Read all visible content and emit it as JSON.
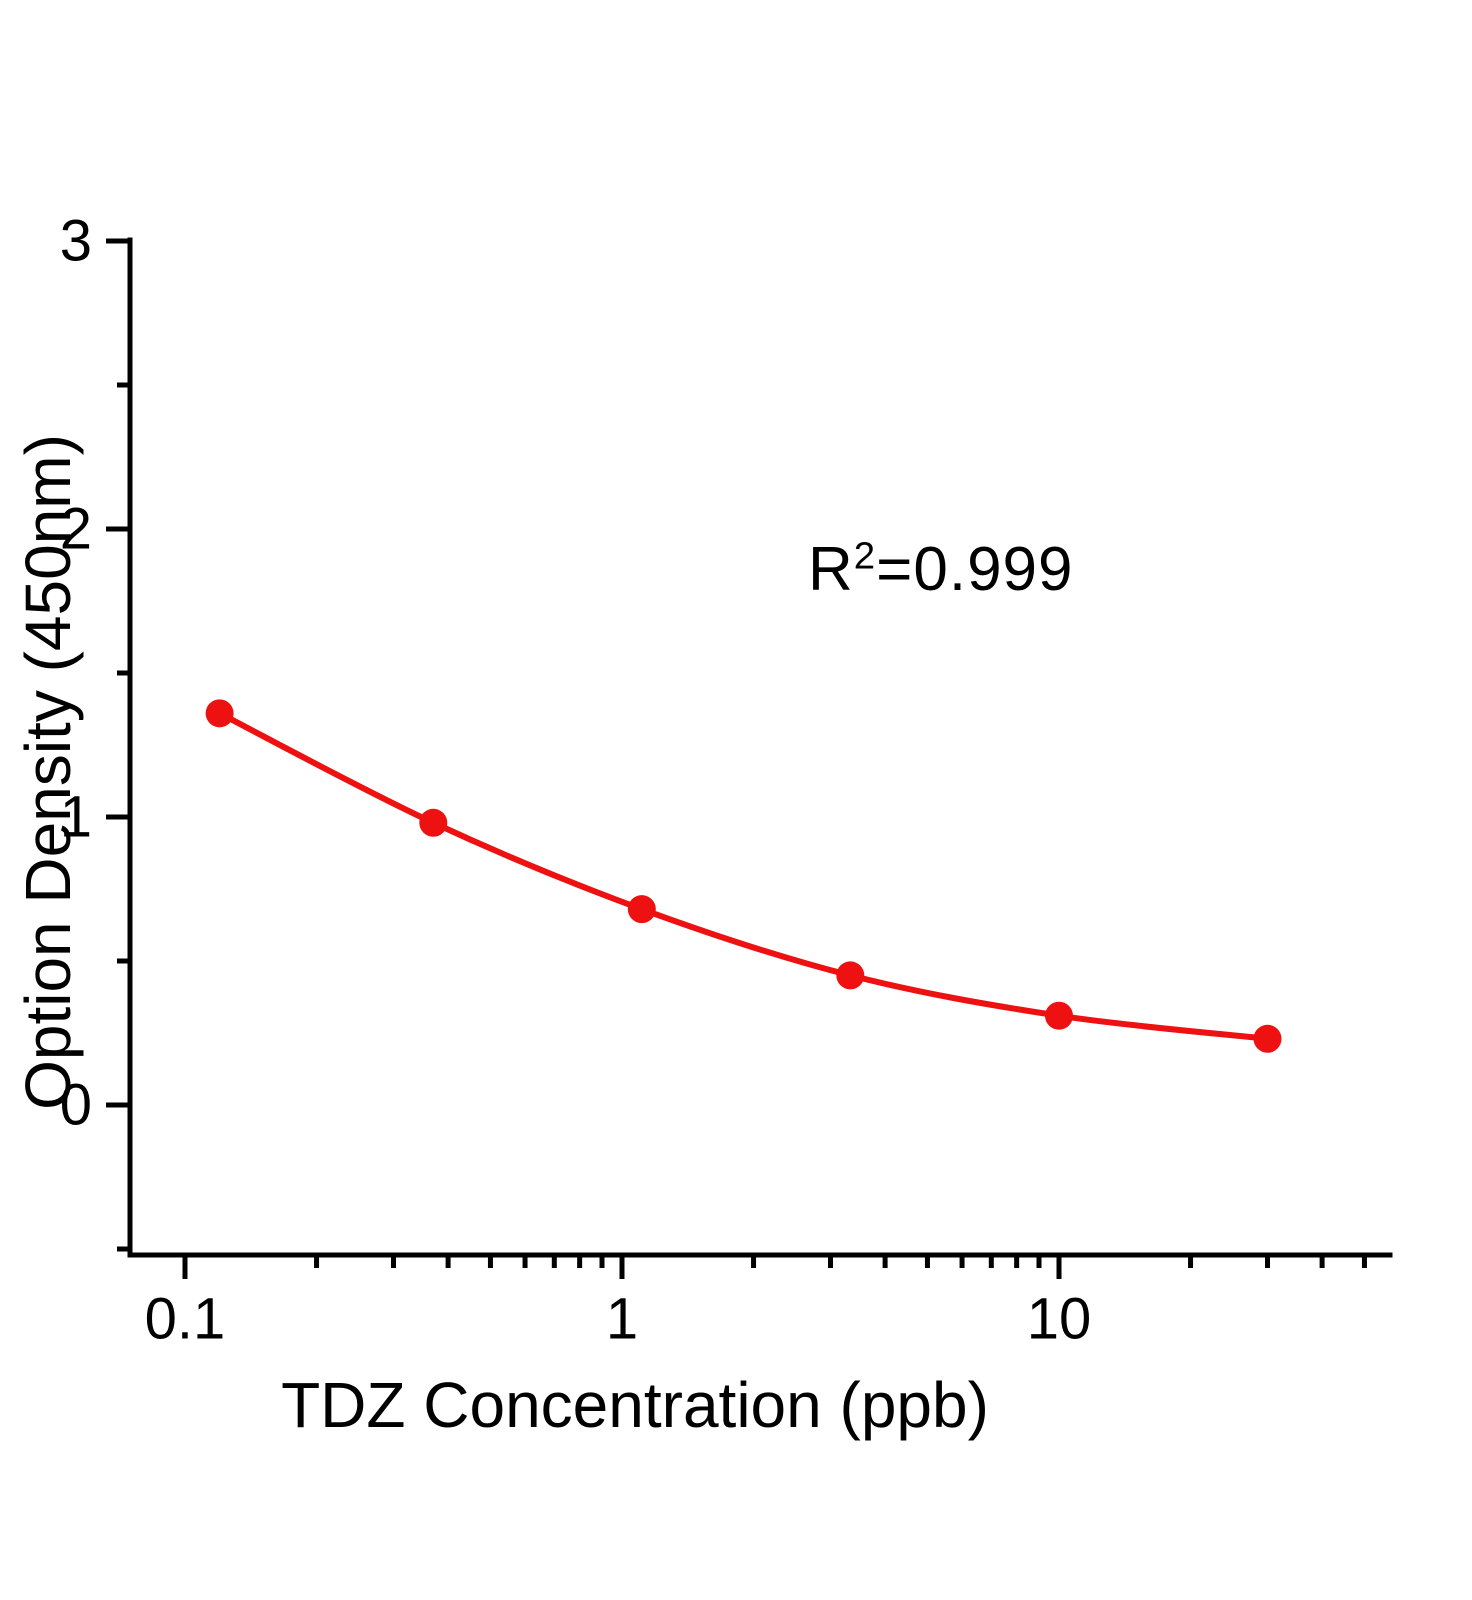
{
  "chart_data": {
    "type": "line",
    "x": [
      0.12,
      0.37,
      1.11,
      3.33,
      10,
      30
    ],
    "y": [
      1.36,
      0.98,
      0.68,
      0.45,
      0.31,
      0.23
    ],
    "xlabel": "TDZ Concentration (ppb)",
    "ylabel": "Option Density (450nm)",
    "annotation": {
      "base": "R",
      "sup": "2",
      "rest": "=0.999"
    },
    "x_scale": "log",
    "xlim": [
      0.075,
      57
    ],
    "ylim": [
      -0.52,
      3
    ],
    "x_major_ticks": [
      {
        "v": 0.1,
        "label": "0.1"
      },
      {
        "v": 1,
        "label": "1"
      },
      {
        "v": 10,
        "label": "10"
      }
    ],
    "x_minor_ticks": [
      0.2,
      0.3,
      0.4,
      0.5,
      0.6,
      0.7,
      0.8,
      0.9,
      2,
      3,
      4,
      5,
      6,
      7,
      8,
      9,
      20,
      30,
      40,
      50
    ],
    "y_major_ticks": [
      {
        "v": 0,
        "label": "0"
      },
      {
        "v": 1,
        "label": "1"
      },
      {
        "v": 2,
        "label": "2"
      },
      {
        "v": 3,
        "label": "3"
      }
    ],
    "y_minor_ticks": [
      -0.5,
      0.5,
      1.5,
      2.5
    ],
    "grid": false,
    "legend": "none",
    "colors": {
      "line": "#ed1111",
      "marker": "#ed1111",
      "axis": "#000000",
      "text": "#000000"
    }
  }
}
